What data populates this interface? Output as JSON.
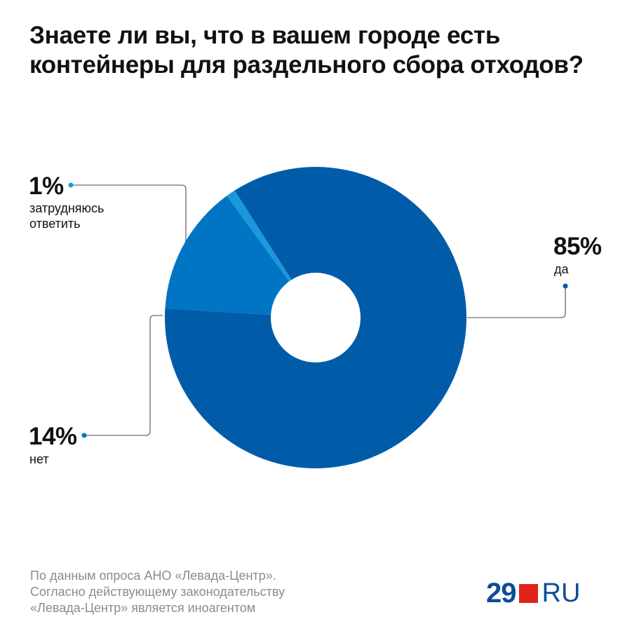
{
  "title": {
    "line1": "Знаете ли вы, что в вашем городе есть",
    "line2": "контейнеры для раздельного сбора отходов?"
  },
  "chart_data": {
    "type": "pie",
    "title": "Знаете ли вы, что в вашем городе есть контейнеры для раздельного сбора отходов?",
    "donut": true,
    "slices": [
      {
        "label": "да",
        "value": 85,
        "value_label": "85%",
        "color": "#005ca8"
      },
      {
        "label": "нет",
        "value": 14,
        "value_label": "14%",
        "color": "#0075c4"
      },
      {
        "label": "затрудняюсь ответить",
        "label_line1": "затрудняюсь",
        "label_line2": "ответить",
        "value": 1,
        "value_label": "1%",
        "color": "#1b97dc"
      }
    ]
  },
  "source": {
    "line1": "По данным опроса АНО «Левада-Центр».",
    "line2": "Согласно действующему законодательству",
    "line3": "«Левада-Центр» является иноагентом"
  },
  "logo": {
    "number": "29",
    "suffix": "RU",
    "accent_color": "#e2231a",
    "text_color": "#0f4c97"
  }
}
